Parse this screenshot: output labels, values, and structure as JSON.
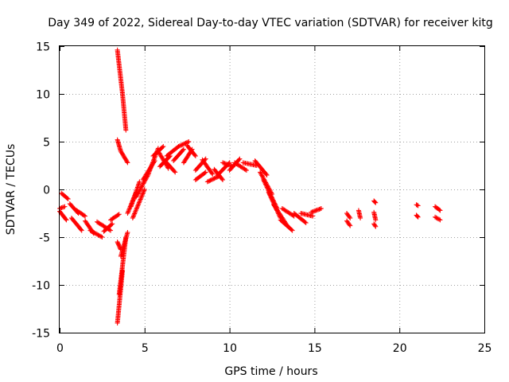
{
  "chart_data": {
    "type": "scatter",
    "title": "Day 349 of 2022, Sidereal Day-to-day VTEC variation (SDTVAR) for receiver kitg",
    "xlabel": "GPS time / hours",
    "ylabel": "SDTVAR / TECUs",
    "xlim": [
      0,
      25
    ],
    "ylim": [
      -15,
      15
    ],
    "xticks": [
      0,
      5,
      10,
      15,
      20,
      25
    ],
    "yticks": [
      -15,
      -10,
      -5,
      0,
      5,
      10,
      15
    ],
    "grid": true,
    "marker": "+",
    "color": "#ff0000",
    "segments": [
      {
        "x": [
          0.0,
          0.3
        ],
        "y": [
          -2.0,
          -1.8
        ]
      },
      {
        "x": [
          0.0,
          0.4
        ],
        "y": [
          -2.3,
          -3.2
        ]
      },
      {
        "x": [
          0.1,
          0.5
        ],
        "y": [
          -0.4,
          -1.0
        ]
      },
      {
        "x": [
          0.6,
          1.1
        ],
        "y": [
          -1.5,
          -2.5
        ]
      },
      {
        "x": [
          0.7,
          1.3
        ],
        "y": [
          -3.0,
          -4.3
        ]
      },
      {
        "x": [
          1.0,
          1.5
        ],
        "y": [
          -2.2,
          -2.8
        ]
      },
      {
        "x": [
          1.5,
          2.0
        ],
        "y": [
          -3.3,
          -4.6
        ]
      },
      {
        "x": [
          1.8,
          2.5
        ],
        "y": [
          -4.3,
          -5.0
        ]
      },
      {
        "x": [
          2.2,
          3.0
        ],
        "y": [
          -3.4,
          -4.3
        ]
      },
      {
        "x": [
          2.6,
          3.1
        ],
        "y": [
          -4.4,
          -3.6
        ]
      },
      {
        "x": [
          3.0,
          3.5
        ],
        "y": [
          -3.2,
          -2.6
        ]
      },
      {
        "x": [
          3.4,
          3.7
        ],
        "y": [
          14.6,
          10.0
        ]
      },
      {
        "x": [
          3.7,
          3.9
        ],
        "y": [
          10.0,
          6.2
        ]
      },
      {
        "x": [
          3.4,
          3.6
        ],
        "y": [
          5.2,
          4.0
        ]
      },
      {
        "x": [
          3.6,
          4.0
        ],
        "y": [
          4.0,
          2.8
        ]
      },
      {
        "x": [
          3.4,
          3.6
        ],
        "y": [
          -5.5,
          -6.3
        ]
      },
      {
        "x": [
          3.4,
          3.7
        ],
        "y": [
          -14.0,
          -8.5
        ]
      },
      {
        "x": [
          3.5,
          3.9
        ],
        "y": [
          -11.0,
          -5.0
        ]
      },
      {
        "x": [
          3.6,
          4.0
        ],
        "y": [
          -7.0,
          -4.5
        ]
      },
      {
        "x": [
          4.0,
          4.5
        ],
        "y": [
          -2.5,
          -0.3
        ]
      },
      {
        "x": [
          4.2,
          4.7
        ],
        "y": [
          -1.8,
          0.8
        ]
      },
      {
        "x": [
          4.3,
          5.0
        ],
        "y": [
          -3.0,
          0.0
        ]
      },
      {
        "x": [
          4.5,
          5.2
        ],
        "y": [
          -0.8,
          1.5
        ]
      },
      {
        "x": [
          4.9,
          5.6
        ],
        "y": [
          1.0,
          3.0
        ]
      },
      {
        "x": [
          5.2,
          5.8
        ],
        "y": [
          1.5,
          4.3
        ]
      },
      {
        "x": [
          5.5,
          6.1
        ],
        "y": [
          3.5,
          4.5
        ]
      },
      {
        "x": [
          5.8,
          6.4
        ],
        "y": [
          4.0,
          2.2
        ]
      },
      {
        "x": [
          5.9,
          6.5
        ],
        "y": [
          2.4,
          3.5
        ]
      },
      {
        "x": [
          6.2,
          6.8
        ],
        "y": [
          3.0,
          1.8
        ]
      },
      {
        "x": [
          6.3,
          7.0
        ],
        "y": [
          3.5,
          4.5
        ]
      },
      {
        "x": [
          6.7,
          7.3
        ],
        "y": [
          3.0,
          4.2
        ]
      },
      {
        "x": [
          7.0,
          7.6
        ],
        "y": [
          4.5,
          5.0
        ]
      },
      {
        "x": [
          7.3,
          7.8
        ],
        "y": [
          2.8,
          4.2
        ]
      },
      {
        "x": [
          7.5,
          8.0
        ],
        "y": [
          4.6,
          3.5
        ]
      },
      {
        "x": [
          8.0,
          8.6
        ],
        "y": [
          2.0,
          3.2
        ]
      },
      {
        "x": [
          8.0,
          8.6
        ],
        "y": [
          1.0,
          1.8
        ]
      },
      {
        "x": [
          8.4,
          9.0
        ],
        "y": [
          3.1,
          1.6
        ]
      },
      {
        "x": [
          8.7,
          9.4
        ],
        "y": [
          0.8,
          1.4
        ]
      },
      {
        "x": [
          9.1,
          9.6
        ],
        "y": [
          2.1,
          1.0
        ]
      },
      {
        "x": [
          9.3,
          10.0
        ],
        "y": [
          1.5,
          2.8
        ]
      },
      {
        "x": [
          9.6,
          10.2
        ],
        "y": [
          2.8,
          2.4
        ]
      },
      {
        "x": [
          10.0,
          10.6
        ],
        "y": [
          2.0,
          3.2
        ]
      },
      {
        "x": [
          10.3,
          11.0
        ],
        "y": [
          2.8,
          2.0
        ]
      },
      {
        "x": [
          10.8,
          11.6
        ],
        "y": [
          2.8,
          2.5
        ]
      },
      {
        "x": [
          11.5,
          12.2
        ],
        "y": [
          3.0,
          1.5
        ]
      },
      {
        "x": [
          11.8,
          12.5
        ],
        "y": [
          1.8,
          -0.5
        ]
      },
      {
        "x": [
          12.0,
          12.8
        ],
        "y": [
          1.0,
          -2.0
        ]
      },
      {
        "x": [
          12.3,
          13.0
        ],
        "y": [
          -0.3,
          -3.0
        ]
      },
      {
        "x": [
          12.6,
          13.4
        ],
        "y": [
          -1.6,
          -3.8
        ]
      },
      {
        "x": [
          13.0,
          13.7
        ],
        "y": [
          -3.2,
          -4.3
        ]
      },
      {
        "x": [
          13.1,
          13.8
        ],
        "y": [
          -2.0,
          -2.8
        ]
      },
      {
        "x": [
          13.8,
          14.5
        ],
        "y": [
          -2.5,
          -3.5
        ]
      },
      {
        "x": [
          14.2,
          14.9
        ],
        "y": [
          -2.5,
          -2.8
        ]
      },
      {
        "x": [
          14.8,
          15.4
        ],
        "y": [
          -2.4,
          -2.0
        ]
      },
      {
        "x": [
          16.9,
          17.1
        ],
        "y": [
          -2.5,
          -3.0
        ]
      },
      {
        "x": [
          16.9,
          17.1
        ],
        "y": [
          -3.3,
          -3.8
        ]
      },
      {
        "x": [
          17.6,
          17.7
        ],
        "y": [
          -2.2,
          -3.0
        ]
      },
      {
        "x": [
          18.5,
          18.6
        ],
        "y": [
          -1.2,
          -1.4
        ]
      },
      {
        "x": [
          18.5,
          18.6
        ],
        "y": [
          -2.4,
          -3.2
        ]
      },
      {
        "x": [
          18.5,
          18.6
        ],
        "y": [
          -3.6,
          -3.9
        ]
      },
      {
        "x": [
          21.0,
          21.1
        ],
        "y": [
          -1.6,
          -1.7
        ]
      },
      {
        "x": [
          21.0,
          21.1
        ],
        "y": [
          -2.7,
          -2.9
        ]
      },
      {
        "x": [
          22.1,
          22.4
        ],
        "y": [
          -1.8,
          -2.2
        ]
      },
      {
        "x": [
          22.1,
          22.4
        ],
        "y": [
          -2.9,
          -3.2
        ]
      }
    ]
  }
}
